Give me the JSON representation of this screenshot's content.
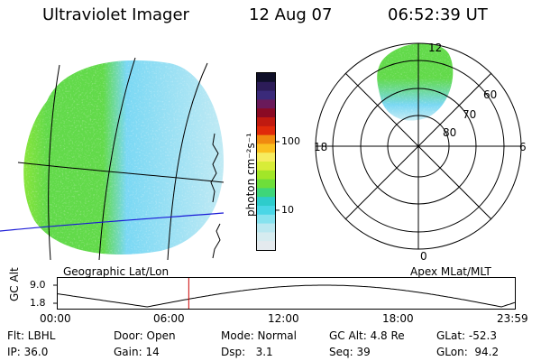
{
  "header": {
    "instrument": "Ultraviolet Imager",
    "date": "12 Aug 07",
    "time": "06:52:39 UT"
  },
  "colorbar": {
    "label": "photon cm⁻²s⁻¹",
    "tick_labels": [
      "100",
      "10"
    ],
    "tick_values": [
      100,
      10
    ],
    "colors": [
      "#0f0f28",
      "#2c1c58",
      "#3a2a7a",
      "#6a1a5a",
      "#8a0a24",
      "#c01a10",
      "#e02a0a",
      "#f08a10",
      "#fac020",
      "#f6ec60",
      "#d8ec38",
      "#a2e628",
      "#6ede3a",
      "#3ed67a",
      "#2ecccc",
      "#4ad6e6",
      "#86e2ee",
      "#bae8f0",
      "#d6ecf0",
      "#e4eaee"
    ]
  },
  "geographic_panel": {
    "label": "Geographic Lat/Lon",
    "colors": {
      "bright": "#aef02a",
      "green": "#62da4a",
      "cyan": "#7ad8f4",
      "pale": "#c8ecf4"
    }
  },
  "polar_panel": {
    "label": "Apex MLat/MLT",
    "mlt_labels": [
      "12",
      "18",
      "6",
      "0"
    ],
    "mlat_labels": [
      "60",
      "70",
      "80"
    ]
  },
  "altitude_plot": {
    "ylabel": "GC Alt",
    "y_ticks": [
      "9.0",
      "1.8"
    ],
    "x_ticks": [
      "00:00",
      "06:00",
      "12:00",
      "18:00",
      "23:59"
    ],
    "current_time_hours": 6.88,
    "marker_color": "#cc0000"
  },
  "footer": {
    "filter": "Flt: LBHL",
    "door": "Door: Open",
    "mode": "Mode: Normal",
    "gc_alt": "GC Alt: 4.8 Re",
    "glat": "GLat: -52.3",
    "ip": "IP: 36.0",
    "gain": "Gain: 14",
    "dsp": "Dsp:   3.1",
    "seq": "Seq: 39",
    "glon": "GLon:  94.2"
  }
}
